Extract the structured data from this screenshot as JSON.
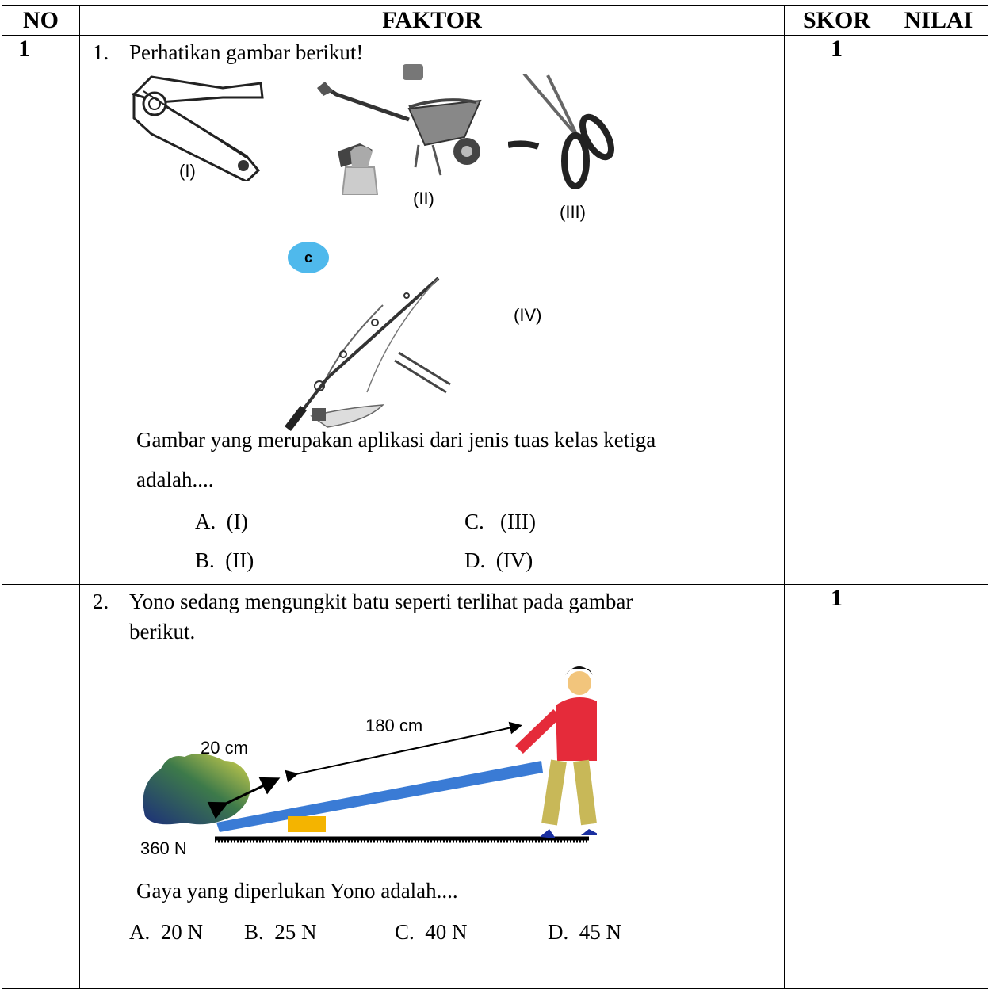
{
  "header": {
    "no": "NO",
    "faktor": "FAKTOR",
    "skor": "SKOR",
    "nilai": "NILAI"
  },
  "rows": [
    {
      "no": "1",
      "number": "1.",
      "prompt": "Perhatikan gambar berikut!",
      "image_labels": [
        "(I)",
        "(II)",
        "(III)",
        "(IV)"
      ],
      "badge": "c",
      "question_line1": "Gambar yang merupakan aplikasi dari jenis tuas kelas ketiga",
      "question_line2": "adalah....",
      "options": {
        "a": "A.  (I)",
        "b": "B.  (II)",
        "c": "C.   (III)",
        "d": "D.  (IV)"
      },
      "skor": "1",
      "nilai": ""
    },
    {
      "no": "",
      "number": "2.",
      "prompt_line1": "Yono sedang mengungkit batu seperti terlihat pada gambar",
      "prompt_line2": "berikut.",
      "diagram": {
        "short_arm": "20 cm",
        "long_arm": "180 cm",
        "load": "360 N"
      },
      "question": "Gaya yang diperlukan Yono adalah....",
      "options": {
        "a": "A.  20 N",
        "b": "B.  25 N",
        "c": "C.  40 N",
        "d": "D.  45 N"
      },
      "skor": "1",
      "nilai": ""
    }
  ]
}
